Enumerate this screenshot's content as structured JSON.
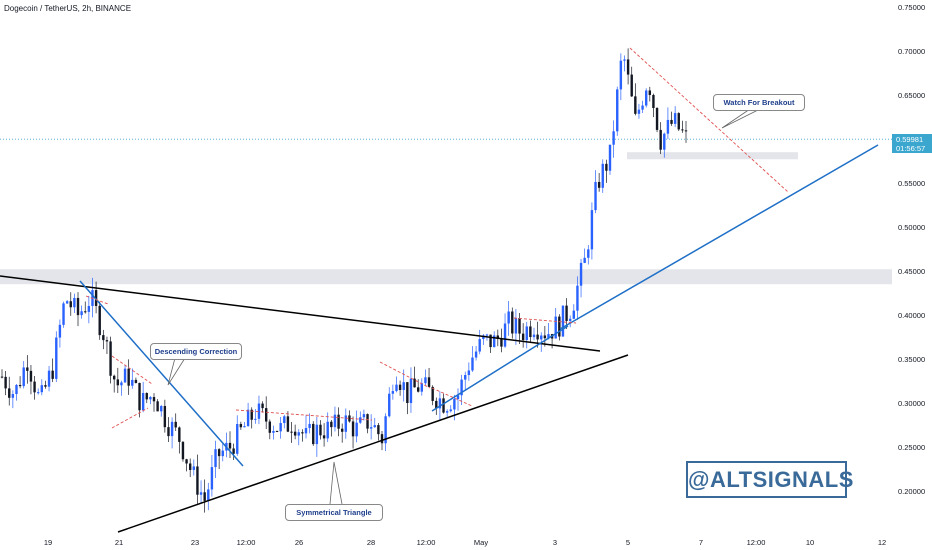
{
  "title": "Dogecoin / TetherUS, 2h, BINANCE",
  "price_tag": {
    "price": "0.59981",
    "timer": "01:56:57"
  },
  "annotations": {
    "descending_correction": "Descending Correction",
    "watch_for_breakout": "Watch For Breakout",
    "symmetrical_triangle": "Symmetrical Triangle"
  },
  "watermark": "@ALTSIGNALS",
  "colors": {
    "up": "#2962ff",
    "down": "#131722",
    "trendline_blue": "#1e6fc7",
    "trendline_black": "#000000",
    "dashed": "#e05050",
    "price_tag": "#3ba7cf",
    "zone": "#d1d4dc"
  },
  "chart_data": {
    "type": "candlestick",
    "title": "Dogecoin / TetherUS, 2h, BINANCE",
    "interval": "2h",
    "ylim": [
      0.16,
      0.76
    ],
    "y_ticks": [
      "0.20000",
      "0.25000",
      "0.30000",
      "0.35000",
      "0.40000",
      "0.45000",
      "0.50000",
      "0.55000",
      "0.60000",
      "0.65000",
      "0.70000",
      "0.75000"
    ],
    "x_ticks": [
      "19",
      "21",
      "23",
      "12:00",
      "26",
      "28",
      "12:00",
      "May",
      "3",
      "5",
      "7",
      "12:00",
      "10",
      "12"
    ],
    "last_price": 0.59981,
    "zones": [
      {
        "from": 0.435,
        "to": 0.452
      },
      {
        "from": 0.577,
        "to": 0.585
      }
    ],
    "price_path": [
      0.33,
      0.31,
      0.35,
      0.3,
      0.34,
      0.42,
      0.4,
      0.42,
      0.38,
      0.32,
      0.33,
      0.3,
      0.31,
      0.28,
      0.26,
      0.22,
      0.19,
      0.24,
      0.25,
      0.27,
      0.29,
      0.28,
      0.27,
      0.28,
      0.26,
      0.27,
      0.27,
      0.28,
      0.27,
      0.28,
      0.26,
      0.34,
      0.31,
      0.32,
      0.31,
      0.3,
      0.31,
      0.35,
      0.37,
      0.37,
      0.39,
      0.38,
      0.39,
      0.38,
      0.39,
      0.41,
      0.46,
      0.55,
      0.58,
      0.7,
      0.62,
      0.67,
      0.6,
      0.62,
      0.6
    ]
  }
}
